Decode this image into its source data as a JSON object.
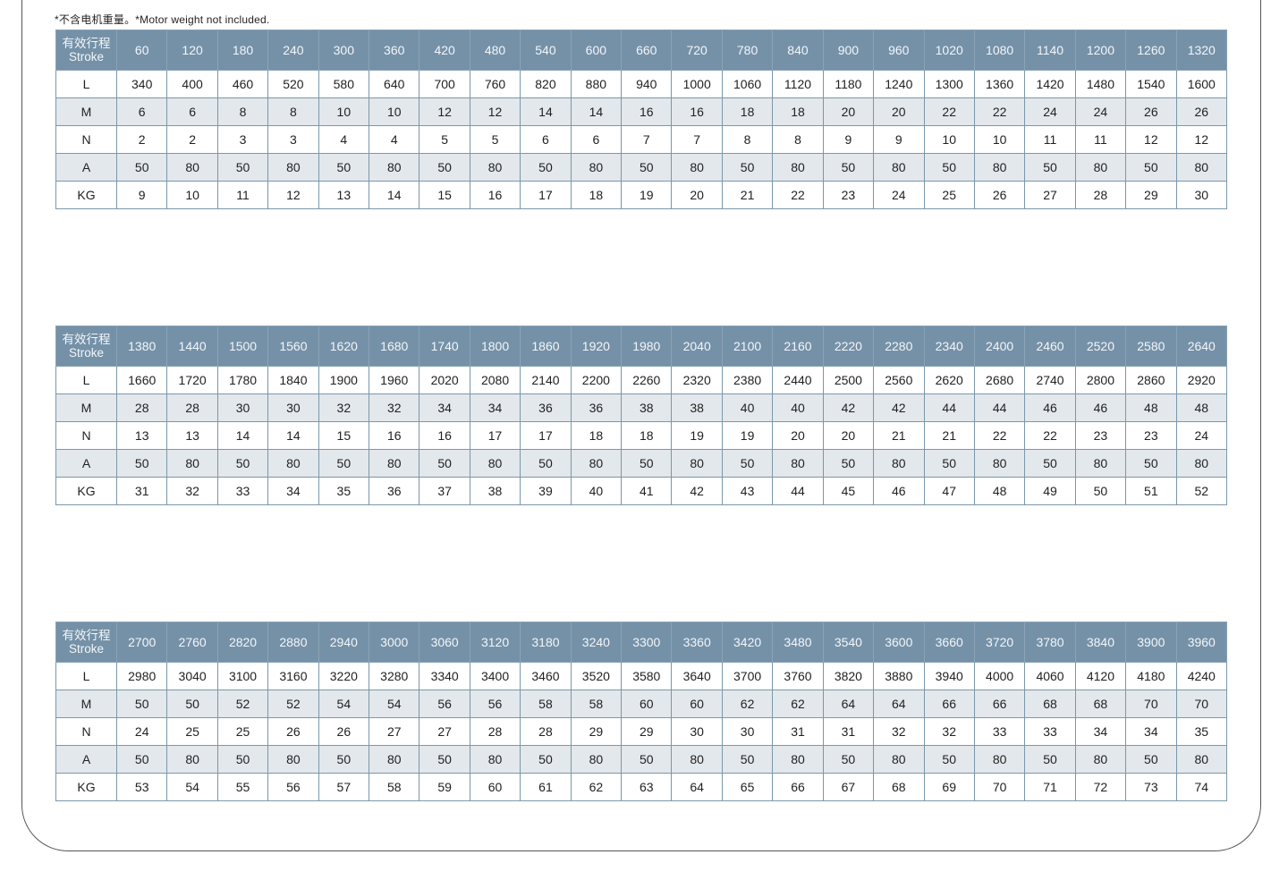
{
  "note": "*不含电机重量。*Motor weight not included.",
  "header_label_cn": "有效行程",
  "header_label_en": "Stroke",
  "row_labels": [
    "L",
    "M",
    "N",
    "A",
    "KG"
  ],
  "colors": {
    "header_bg": "#7591a8",
    "alt_row_bg": "#e3e8ec",
    "border": "#7a97ab"
  },
  "tables": [
    {
      "stroke": [
        "60",
        "120",
        "180",
        "240",
        "300",
        "360",
        "420",
        "480",
        "540",
        "600",
        "660",
        "720",
        "780",
        "840",
        "900",
        "960",
        "1020",
        "1080",
        "1140",
        "1200",
        "1260",
        "1320"
      ],
      "rows": [
        [
          "340",
          "400",
          "460",
          "520",
          "580",
          "640",
          "700",
          "760",
          "820",
          "880",
          "940",
          "1000",
          "1060",
          "1120",
          "1180",
          "1240",
          "1300",
          "1360",
          "1420",
          "1480",
          "1540",
          "1600"
        ],
        [
          "6",
          "6",
          "8",
          "8",
          "10",
          "10",
          "12",
          "12",
          "14",
          "14",
          "16",
          "16",
          "18",
          "18",
          "20",
          "20",
          "22",
          "22",
          "24",
          "24",
          "26",
          "26"
        ],
        [
          "2",
          "2",
          "3",
          "3",
          "4",
          "4",
          "5",
          "5",
          "6",
          "6",
          "7",
          "7",
          "8",
          "8",
          "9",
          "9",
          "10",
          "10",
          "11",
          "11",
          "12",
          "12"
        ],
        [
          "50",
          "80",
          "50",
          "80",
          "50",
          "80",
          "50",
          "80",
          "50",
          "80",
          "50",
          "80",
          "50",
          "80",
          "50",
          "80",
          "50",
          "80",
          "50",
          "80",
          "50",
          "80"
        ],
        [
          "9",
          "10",
          "11",
          "12",
          "13",
          "14",
          "15",
          "16",
          "17",
          "18",
          "19",
          "20",
          "21",
          "22",
          "23",
          "24",
          "25",
          "26",
          "27",
          "28",
          "29",
          "30"
        ]
      ]
    },
    {
      "stroke": [
        "1380",
        "1440",
        "1500",
        "1560",
        "1620",
        "1680",
        "1740",
        "1800",
        "1860",
        "1920",
        "1980",
        "2040",
        "2100",
        "2160",
        "2220",
        "2280",
        "2340",
        "2400",
        "2460",
        "2520",
        "2580",
        "2640"
      ],
      "rows": [
        [
          "1660",
          "1720",
          "1780",
          "1840",
          "1900",
          "1960",
          "2020",
          "2080",
          "2140",
          "2200",
          "2260",
          "2320",
          "2380",
          "2440",
          "2500",
          "2560",
          "2620",
          "2680",
          "2740",
          "2800",
          "2860",
          "2920"
        ],
        [
          "28",
          "28",
          "30",
          "30",
          "32",
          "32",
          "34",
          "34",
          "36",
          "36",
          "38",
          "38",
          "40",
          "40",
          "42",
          "42",
          "44",
          "44",
          "46",
          "46",
          "48",
          "48"
        ],
        [
          "13",
          "13",
          "14",
          "14",
          "15",
          "16",
          "16",
          "17",
          "17",
          "18",
          "18",
          "19",
          "19",
          "20",
          "20",
          "21",
          "21",
          "22",
          "22",
          "23",
          "23",
          "24"
        ],
        [
          "50",
          "80",
          "50",
          "80",
          "50",
          "80",
          "50",
          "80",
          "50",
          "80",
          "50",
          "80",
          "50",
          "80",
          "50",
          "80",
          "50",
          "80",
          "50",
          "80",
          "50",
          "80"
        ],
        [
          "31",
          "32",
          "33",
          "34",
          "35",
          "36",
          "37",
          "38",
          "39",
          "40",
          "41",
          "42",
          "43",
          "44",
          "45",
          "46",
          "47",
          "48",
          "49",
          "50",
          "51",
          "52"
        ]
      ]
    },
    {
      "stroke": [
        "2700",
        "2760",
        "2820",
        "2880",
        "2940",
        "3000",
        "3060",
        "3120",
        "3180",
        "3240",
        "3300",
        "3360",
        "3420",
        "3480",
        "3540",
        "3600",
        "3660",
        "3720",
        "3780",
        "3840",
        "3900",
        "3960"
      ],
      "rows": [
        [
          "2980",
          "3040",
          "3100",
          "3160",
          "3220",
          "3280",
          "3340",
          "3400",
          "3460",
          "3520",
          "3580",
          "3640",
          "3700",
          "3760",
          "3820",
          "3880",
          "3940",
          "4000",
          "4060",
          "4120",
          "4180",
          "4240"
        ],
        [
          "50",
          "50",
          "52",
          "52",
          "54",
          "54",
          "56",
          "56",
          "58",
          "58",
          "60",
          "60",
          "62",
          "62",
          "64",
          "64",
          "66",
          "66",
          "68",
          "68",
          "70",
          "70"
        ],
        [
          "24",
          "25",
          "25",
          "26",
          "26",
          "27",
          "27",
          "28",
          "28",
          "29",
          "29",
          "30",
          "30",
          "31",
          "31",
          "32",
          "32",
          "33",
          "33",
          "34",
          "34",
          "35"
        ],
        [
          "50",
          "80",
          "50",
          "80",
          "50",
          "80",
          "50",
          "80",
          "50",
          "80",
          "50",
          "80",
          "50",
          "80",
          "50",
          "80",
          "50",
          "80",
          "50",
          "80",
          "50",
          "80"
        ],
        [
          "53",
          "54",
          "55",
          "56",
          "57",
          "58",
          "59",
          "60",
          "61",
          "62",
          "63",
          "64",
          "65",
          "66",
          "67",
          "68",
          "69",
          "70",
          "71",
          "72",
          "73",
          "74"
        ]
      ]
    }
  ]
}
